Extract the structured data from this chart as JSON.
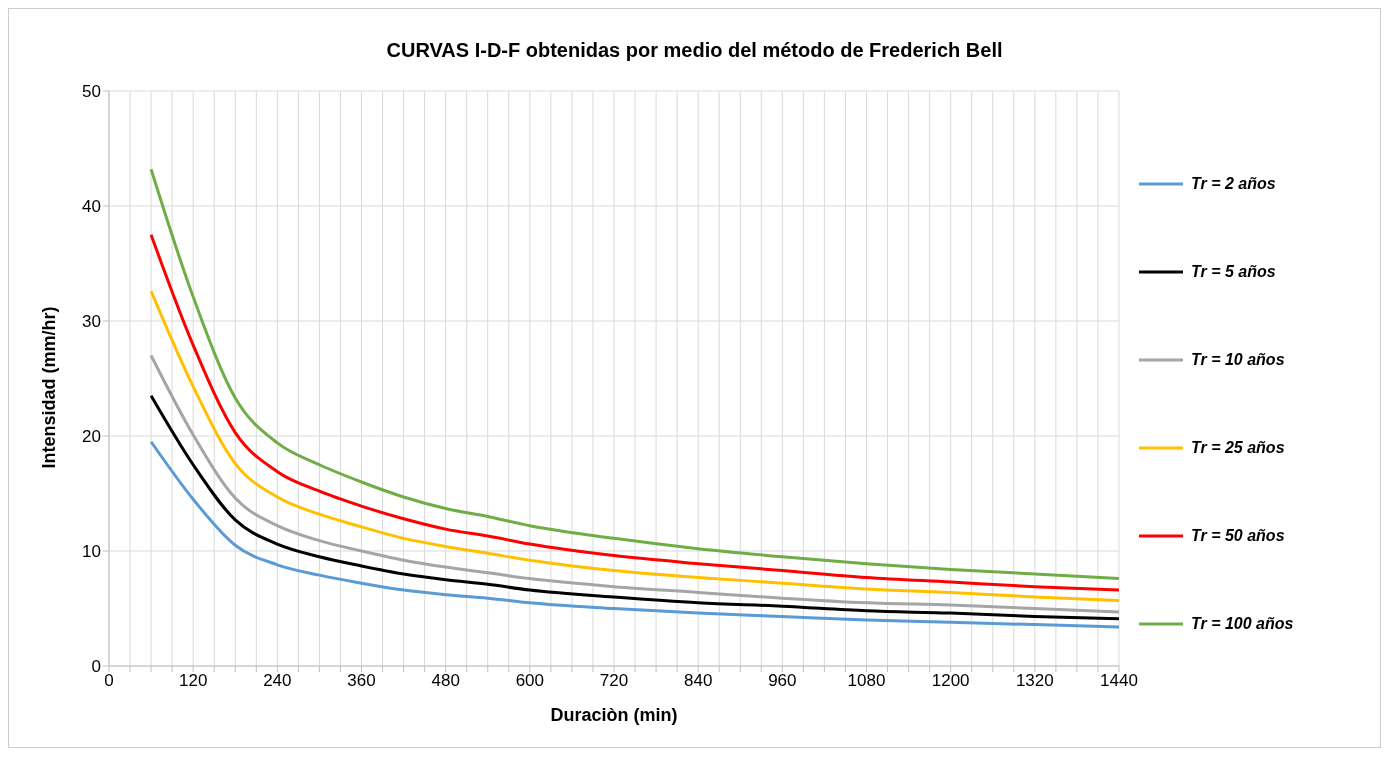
{
  "chart_data": {
    "type": "line",
    "title": "CURVAS I-D-F obtenidas  por medio  del método  de Frederich  Bell",
    "xlabel": "Duraciòn (min)",
    "ylabel": "Intensidad (mm/hr)",
    "x": [
      60,
      120,
      180,
      240,
      300,
      360,
      420,
      480,
      540,
      600,
      720,
      840,
      960,
      1080,
      1200,
      1320,
      1440
    ],
    "series": [
      {
        "name": "Tr = 2 años",
        "color": "#5b9bd5",
        "values": [
          19.5,
          14.5,
          10.5,
          8.8,
          7.9,
          7.2,
          6.6,
          6.2,
          5.9,
          5.5,
          5.0,
          4.6,
          4.3,
          4.0,
          3.8,
          3.6,
          3.4
        ]
      },
      {
        "name": "Tr = 5 años",
        "color": "#000000",
        "values": [
          23.5,
          17.5,
          12.7,
          10.6,
          9.5,
          8.7,
          8.0,
          7.5,
          7.1,
          6.6,
          6.0,
          5.5,
          5.2,
          4.8,
          4.6,
          4.3,
          4.1
        ]
      },
      {
        "name": "Tr = 10 años",
        "color": "#a5a5a5",
        "values": [
          27,
          20.1,
          14.6,
          12.2,
          10.9,
          10.0,
          9.2,
          8.6,
          8.1,
          7.6,
          6.9,
          6.4,
          5.9,
          5.5,
          5.3,
          5.0,
          4.7
        ]
      },
      {
        "name": "Tr = 25 años",
        "color": "#ffc000",
        "values": [
          32.6,
          24.3,
          17.6,
          14.7,
          13.2,
          12.1,
          11.1,
          10.4,
          9.8,
          9.2,
          8.3,
          7.7,
          7.2,
          6.7,
          6.4,
          6.0,
          5.7
        ]
      },
      {
        "name": "Tr = 50 años",
        "color": "#ff0000",
        "values": [
          37.5,
          27.9,
          20.3,
          16.9,
          15.2,
          13.9,
          12.8,
          11.9,
          11.3,
          10.6,
          9.6,
          8.9,
          8.3,
          7.7,
          7.3,
          6.9,
          6.6
        ]
      },
      {
        "name": "Tr = 100 años",
        "color": "#70ad47",
        "values": [
          43.2,
          32.1,
          23.3,
          19.4,
          17.5,
          16.0,
          14.7,
          13.7,
          13.0,
          12.2,
          11.1,
          10.2,
          9.5,
          8.9,
          8.4,
          8.0,
          7.6
        ]
      }
    ],
    "xlim": [
      0,
      1440
    ],
    "xticks": [
      0,
      {
        "value": 30,
        "label": null
      },
      {
        "value": 60,
        "label": null
      },
      {
        "value": 90,
        "label": null
      },
      120,
      {
        "value": 150,
        "label": null
      },
      {
        "value": 180,
        "label": null
      },
      {
        "value": 210,
        "label": null
      },
      240,
      {
        "value": 270,
        "label": null
      },
      {
        "value": 300,
        "label": null
      },
      {
        "value": 330,
        "label": null
      },
      360,
      {
        "value": 390,
        "label": null
      },
      {
        "value": 420,
        "label": null
      },
      {
        "value": 450,
        "label": null
      },
      480,
      {
        "value": 510,
        "label": null
      },
      {
        "value": 540,
        "label": null
      },
      {
        "value": 570,
        "label": null
      },
      600,
      {
        "value": 630,
        "label": null
      },
      {
        "value": 660,
        "label": null
      },
      {
        "value": 690,
        "label": null
      },
      720,
      {
        "value": 750,
        "label": null
      },
      {
        "value": 780,
        "label": null
      },
      {
        "value": 810,
        "label": null
      },
      840,
      {
        "value": 870,
        "label": null
      },
      {
        "value": 900,
        "label": null
      },
      {
        "value": 930,
        "label": null
      },
      960,
      {
        "value": 990,
        "label": null
      },
      {
        "value": 1020,
        "label": null
      },
      {
        "value": 1050,
        "label": null
      },
      1080,
      {
        "value": 1110,
        "label": null
      },
      {
        "value": 1140,
        "label": null
      },
      {
        "value": 1170,
        "label": null
      },
      1200,
      {
        "value": 1230,
        "label": null
      },
      {
        "value": 1260,
        "label": null
      },
      {
        "value": 1290,
        "label": null
      },
      1320,
      {
        "value": 1350,
        "label": null
      },
      {
        "value": 1380,
        "label": null
      },
      {
        "value": 1410,
        "label": null
      },
      1440
    ],
    "ylim": [
      0,
      50
    ],
    "yticks": [
      0,
      10,
      20,
      30,
      40,
      50
    ],
    "grid": true,
    "legend": "right",
    "line_style": "solid"
  }
}
